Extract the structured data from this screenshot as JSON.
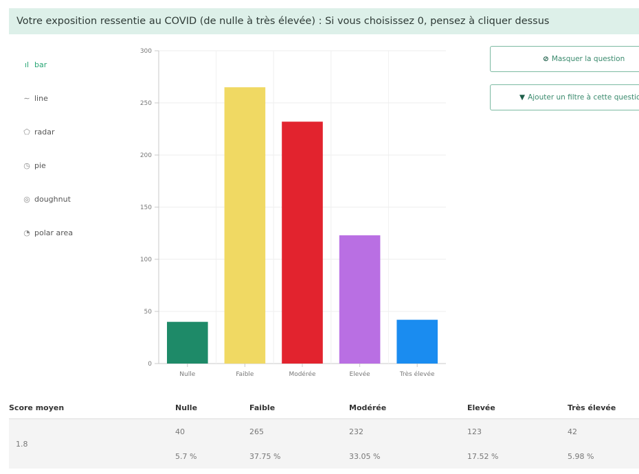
{
  "question": "Votre exposition ressentie au COVID (de nulle à très élevée) : Si vous choisissez 0, pensez à cliquer dessus",
  "chart_types": [
    {
      "label": "bar",
      "icon": "bar-chart-icon",
      "glyph": "ıl"
    },
    {
      "label": "line",
      "icon": "line-chart-icon",
      "glyph": "∼"
    },
    {
      "label": "radar",
      "icon": "radar-chart-icon",
      "glyph": "⬠"
    },
    {
      "label": "pie",
      "icon": "pie-chart-icon",
      "glyph": "◷"
    },
    {
      "label": "doughnut",
      "icon": "doughnut-chart-icon",
      "glyph": "◎"
    },
    {
      "label": "polar area",
      "icon": "polar-area-icon",
      "glyph": "◔"
    }
  ],
  "active_type": "bar",
  "buttons": {
    "hide_question": "Masquer la question",
    "add_filter": "Ajouter un filtre à cette question"
  },
  "chart_data": {
    "type": "bar",
    "categories": [
      "Nulle",
      "Faible",
      "Modérée",
      "Elevée",
      "Très élevée"
    ],
    "values": [
      40,
      265,
      232,
      123,
      42
    ],
    "colors": [
      "#1e8a68",
      "#f0d963",
      "#e2232e",
      "#b96fe3",
      "#1a8cf0"
    ],
    "ylim": [
      0,
      300
    ],
    "yticks": [
      0,
      50,
      100,
      150,
      200,
      250,
      300
    ],
    "grid": true
  },
  "stats": {
    "headers": [
      "Score moyen",
      "Nulle",
      "Faible",
      "Modérée",
      "Elevée",
      "Très élevée"
    ],
    "score": "1.8",
    "counts": [
      "40",
      "265",
      "232",
      "123",
      "42"
    ],
    "percents": [
      "5.7 %",
      "37.75 %",
      "33.05 %",
      "17.52 %",
      "5.98 %"
    ]
  }
}
